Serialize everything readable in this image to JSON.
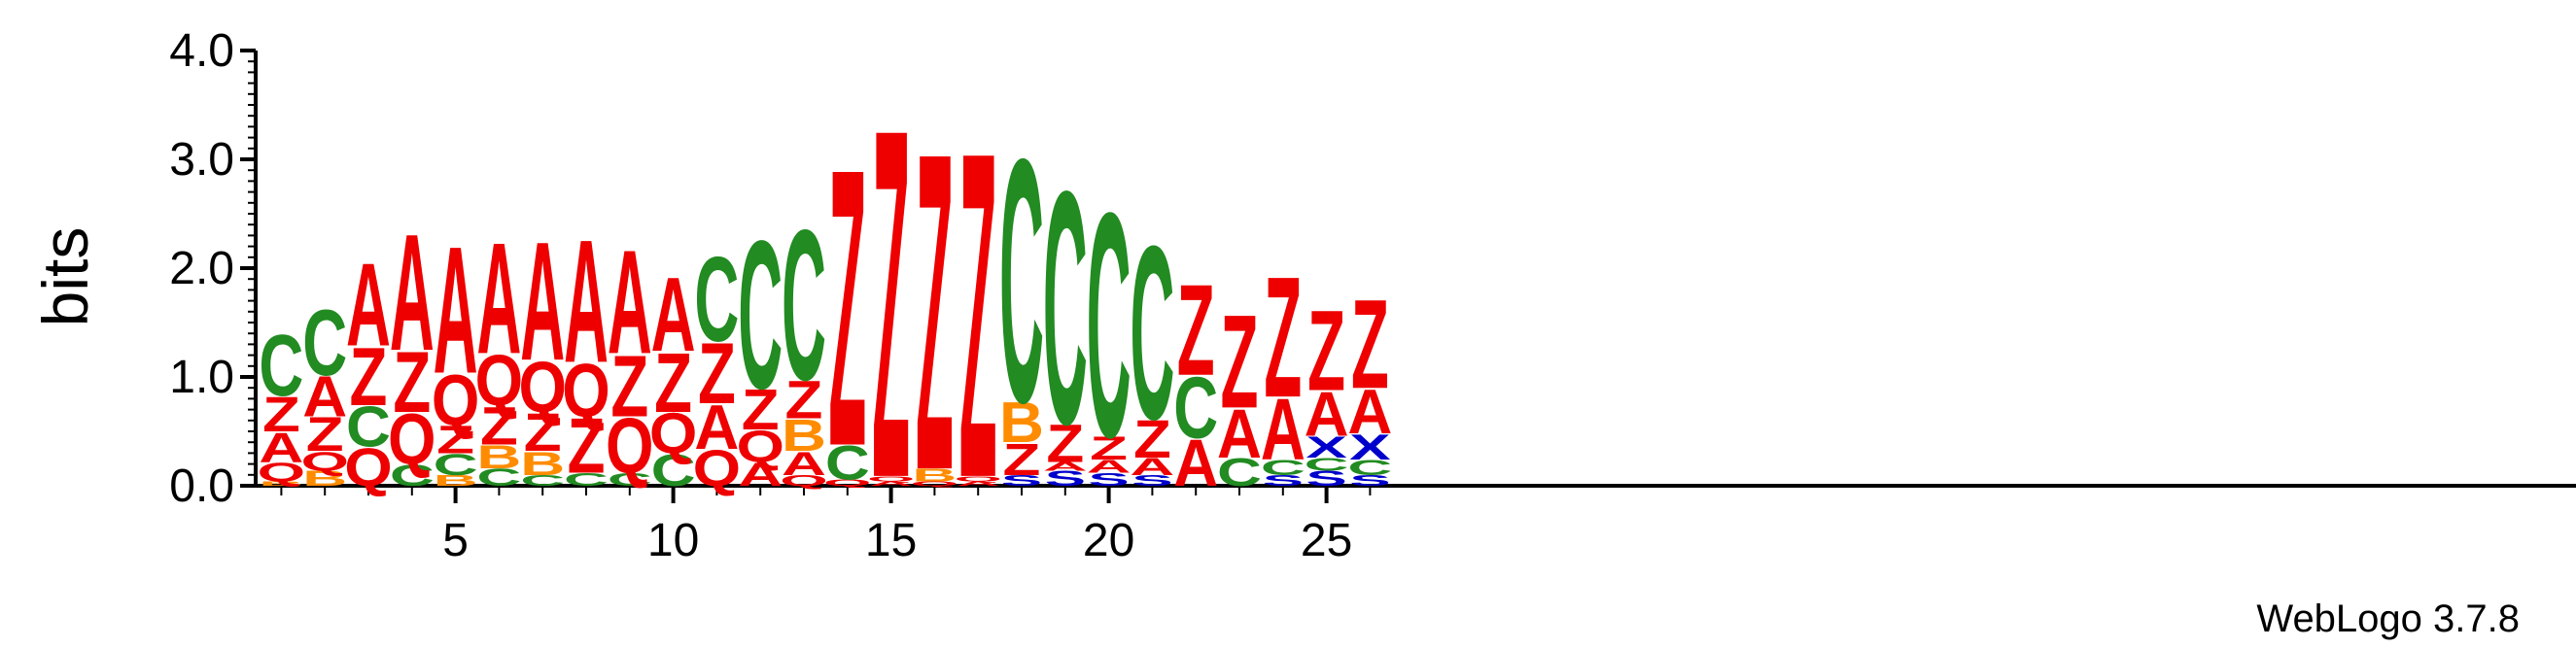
{
  "chart_data": {
    "type": "sequence-logo",
    "ylabel": "bits",
    "ylim": [
      0,
      4.0
    ],
    "yticks": [
      "0.0",
      "1.0",
      "2.0",
      "3.0",
      "4.0"
    ],
    "xticks": [
      "5",
      "10",
      "15",
      "20",
      "25"
    ],
    "footer": "WebLogo 3.7.8",
    "colors": {
      "A": "#ee0000",
      "Z": "#ee0000",
      "Q": "#ee0000",
      "C": "#228b22",
      "B": "#ff8c00",
      "X": "#0000cc",
      "S": "#0000cc"
    },
    "positions": [
      {
        "pos": 1,
        "stack": [
          [
            "B",
            0.04
          ],
          [
            "Q",
            0.18
          ],
          [
            "A",
            0.28
          ],
          [
            "Z",
            0.33
          ],
          [
            "C",
            0.58
          ]
        ]
      },
      {
        "pos": 2,
        "stack": [
          [
            "B",
            0.14
          ],
          [
            "Q",
            0.18
          ],
          [
            "Z",
            0.32
          ],
          [
            "A",
            0.38
          ],
          [
            "C",
            0.62
          ]
        ]
      },
      {
        "pos": 3,
        "stack": [
          [
            "Q",
            0.36
          ],
          [
            "C",
            0.38
          ],
          [
            "Z",
            0.55
          ],
          [
            "A",
            0.78
          ]
        ]
      },
      {
        "pos": 4,
        "stack": [
          [
            "C",
            0.2
          ],
          [
            "Q",
            0.48
          ],
          [
            "Z",
            0.57
          ],
          [
            "A",
            1.1
          ]
        ]
      },
      {
        "pos": 5,
        "stack": [
          [
            "B",
            0.1
          ],
          [
            "C",
            0.2
          ],
          [
            "Z",
            0.26
          ],
          [
            "Q",
            0.48
          ],
          [
            "A",
            1.2
          ]
        ]
      },
      {
        "pos": 6,
        "stack": [
          [
            "C",
            0.16
          ],
          [
            "B",
            0.22
          ],
          [
            "Z",
            0.36
          ],
          [
            "Q",
            0.48
          ],
          [
            "A",
            1.05
          ]
        ]
      },
      {
        "pos": 7,
        "stack": [
          [
            "C",
            0.1
          ],
          [
            "B",
            0.22
          ],
          [
            "Z",
            0.36
          ],
          [
            "Q",
            0.48
          ],
          [
            "A",
            1.12
          ]
        ]
      },
      {
        "pos": 8,
        "stack": [
          [
            "C",
            0.12
          ],
          [
            "Z",
            0.52
          ],
          [
            "Q",
            0.5
          ],
          [
            "A",
            1.16
          ]
        ]
      },
      {
        "pos": 9,
        "stack": [
          [
            "C",
            0.12
          ],
          [
            "Q",
            0.52
          ],
          [
            "Z",
            0.58
          ],
          [
            "A",
            0.98
          ]
        ]
      },
      {
        "pos": 10,
        "stack": [
          [
            "C",
            0.3
          ],
          [
            "Q",
            0.38
          ],
          [
            "Z",
            0.56
          ],
          [
            "A",
            0.7
          ]
        ]
      },
      {
        "pos": 11,
        "stack": [
          [
            "Q",
            0.34
          ],
          [
            "A",
            0.42
          ],
          [
            "Z",
            0.57
          ],
          [
            "C",
            0.8
          ]
        ]
      },
      {
        "pos": 12,
        "stack": [
          [
            "A",
            0.22
          ],
          [
            "Q",
            0.3
          ],
          [
            "Z",
            0.38
          ],
          [
            "C",
            1.4
          ]
        ]
      },
      {
        "pos": 13,
        "stack": [
          [
            "Q",
            0.1
          ],
          [
            "A",
            0.22
          ],
          [
            "B",
            0.3
          ],
          [
            "Z",
            0.36
          ],
          [
            "C",
            1.42
          ]
        ]
      },
      {
        "pos": 14,
        "stack": [
          [
            "Q",
            0.06
          ],
          [
            "C",
            0.32
          ],
          [
            "Z",
            2.62
          ]
        ]
      },
      {
        "pos": 15,
        "stack": [
          [
            "A",
            0.04
          ],
          [
            "Q",
            0.05
          ],
          [
            "Z",
            3.3
          ]
        ]
      },
      {
        "pos": 16,
        "stack": [
          [
            "Q",
            0.04
          ],
          [
            "B",
            0.12
          ],
          [
            "Z",
            3.0
          ]
        ]
      },
      {
        "pos": 17,
        "stack": [
          [
            "A",
            0.04
          ],
          [
            "Q",
            0.05
          ],
          [
            "Z",
            3.08
          ]
        ]
      },
      {
        "pos": 18,
        "stack": [
          [
            "S",
            0.1
          ],
          [
            "Z",
            0.3
          ],
          [
            "B",
            0.38
          ],
          [
            "C",
            2.3
          ]
        ]
      },
      {
        "pos": 19,
        "stack": [
          [
            "S",
            0.14
          ],
          [
            "A",
            0.08
          ],
          [
            "Z",
            0.36
          ],
          [
            "C",
            2.2
          ]
        ]
      },
      {
        "pos": 20,
        "stack": [
          [
            "S",
            0.12
          ],
          [
            "A",
            0.12
          ],
          [
            "Z",
            0.22
          ],
          [
            "C",
            2.12
          ]
        ]
      },
      {
        "pos": 21,
        "stack": [
          [
            "S",
            0.1
          ],
          [
            "A",
            0.16
          ],
          [
            "Z",
            0.36
          ],
          [
            "C",
            1.64
          ]
        ]
      },
      {
        "pos": 22,
        "stack": [
          [
            "A",
            0.44
          ],
          [
            "C",
            0.58
          ],
          [
            "Z",
            0.86
          ]
        ]
      },
      {
        "pos": 23,
        "stack": [
          [
            "C",
            0.26
          ],
          [
            "A",
            0.46
          ],
          [
            "Z",
            0.88
          ]
        ]
      },
      {
        "pos": 24,
        "stack": [
          [
            "S",
            0.1
          ],
          [
            "C",
            0.14
          ],
          [
            "A",
            0.58
          ],
          [
            "Z",
            1.14
          ]
        ]
      },
      {
        "pos": 25,
        "stack": [
          [
            "S",
            0.14
          ],
          [
            "C",
            0.12
          ],
          [
            "X",
            0.2
          ],
          [
            "A",
            0.42
          ],
          [
            "Z",
            0.76
          ]
        ]
      },
      {
        "pos": 26,
        "stack": [
          [
            "S",
            0.1
          ],
          [
            "C",
            0.14
          ],
          [
            "X",
            0.24
          ],
          [
            "A",
            0.42
          ],
          [
            "Z",
            0.84
          ]
        ]
      }
    ]
  }
}
